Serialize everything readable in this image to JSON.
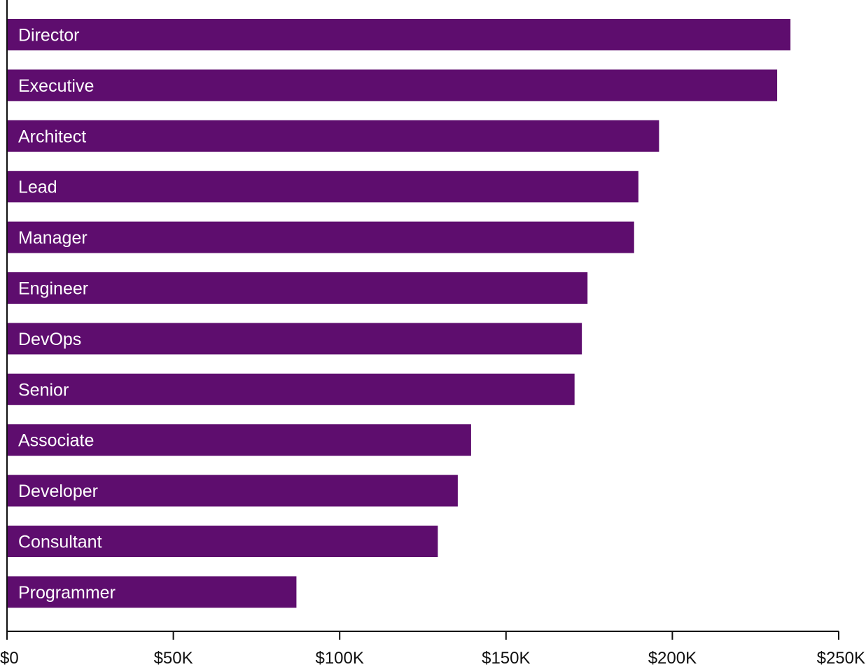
{
  "chart_data": {
    "type": "bar",
    "orientation": "horizontal",
    "categories": [
      "Director",
      "Executive",
      "Architect",
      "Lead",
      "Manager",
      "Engineer",
      "DevOps",
      "Senior",
      "Associate",
      "Developer",
      "Consultant",
      "Programmer"
    ],
    "values": [
      235500,
      231500,
      196000,
      189800,
      188500,
      174500,
      172800,
      170600,
      139500,
      135500,
      129500,
      87000
    ],
    "xlim": [
      0,
      250000
    ],
    "xticks": [
      0,
      50000,
      100000,
      150000,
      200000,
      250000
    ],
    "xtick_labels": [
      "$0",
      "$50K",
      "$100K",
      "$150K",
      "$200K",
      "$250K"
    ],
    "title": "",
    "xlabel": "",
    "ylabel": "",
    "grid": false,
    "legend": "none",
    "bar_color": "#5E0D6E",
    "label_color": "#FFFFFF",
    "axis_color": "#111111"
  }
}
